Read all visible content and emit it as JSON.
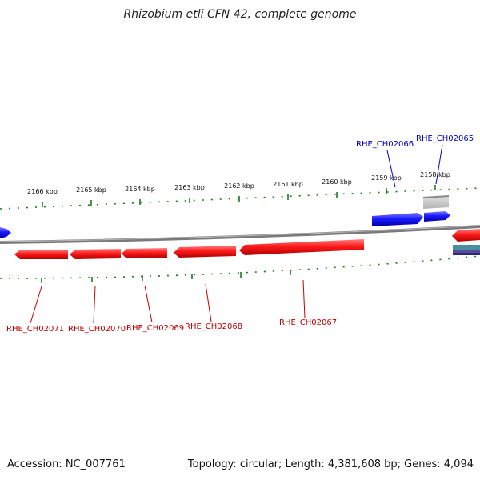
{
  "title": "Rhizobium etli CFN 42, complete genome",
  "footer": {
    "accession": "Accession: NC_007761",
    "stats": "Topology: circular; Length: 4,381,608 bp; Genes: 4,094"
  },
  "ticks": [
    "2166 kbp",
    "2165 kbp",
    "2164 kbp",
    "2163 kbp",
    "2162 kbp",
    "2161 kbp",
    "2160 kbp",
    "2159 kbp",
    "2158 kbp"
  ],
  "genes_reverse": [
    "RHE_CH02071",
    "RHE_CH02070",
    "RHE_CH02069",
    "RHE_CH02068",
    "RHE_CH02067"
  ],
  "genes_forward": [
    "RHE_CH02066",
    "RHE_CH02065"
  ],
  "colors": {
    "forward_gene": "#1a1aff",
    "reverse_gene": "#ff1a1a",
    "forward_label": "#0000bb",
    "reverse_label": "#bb0000",
    "backbone": "#8a8a8a",
    "tick": "#1c7a1c"
  }
}
